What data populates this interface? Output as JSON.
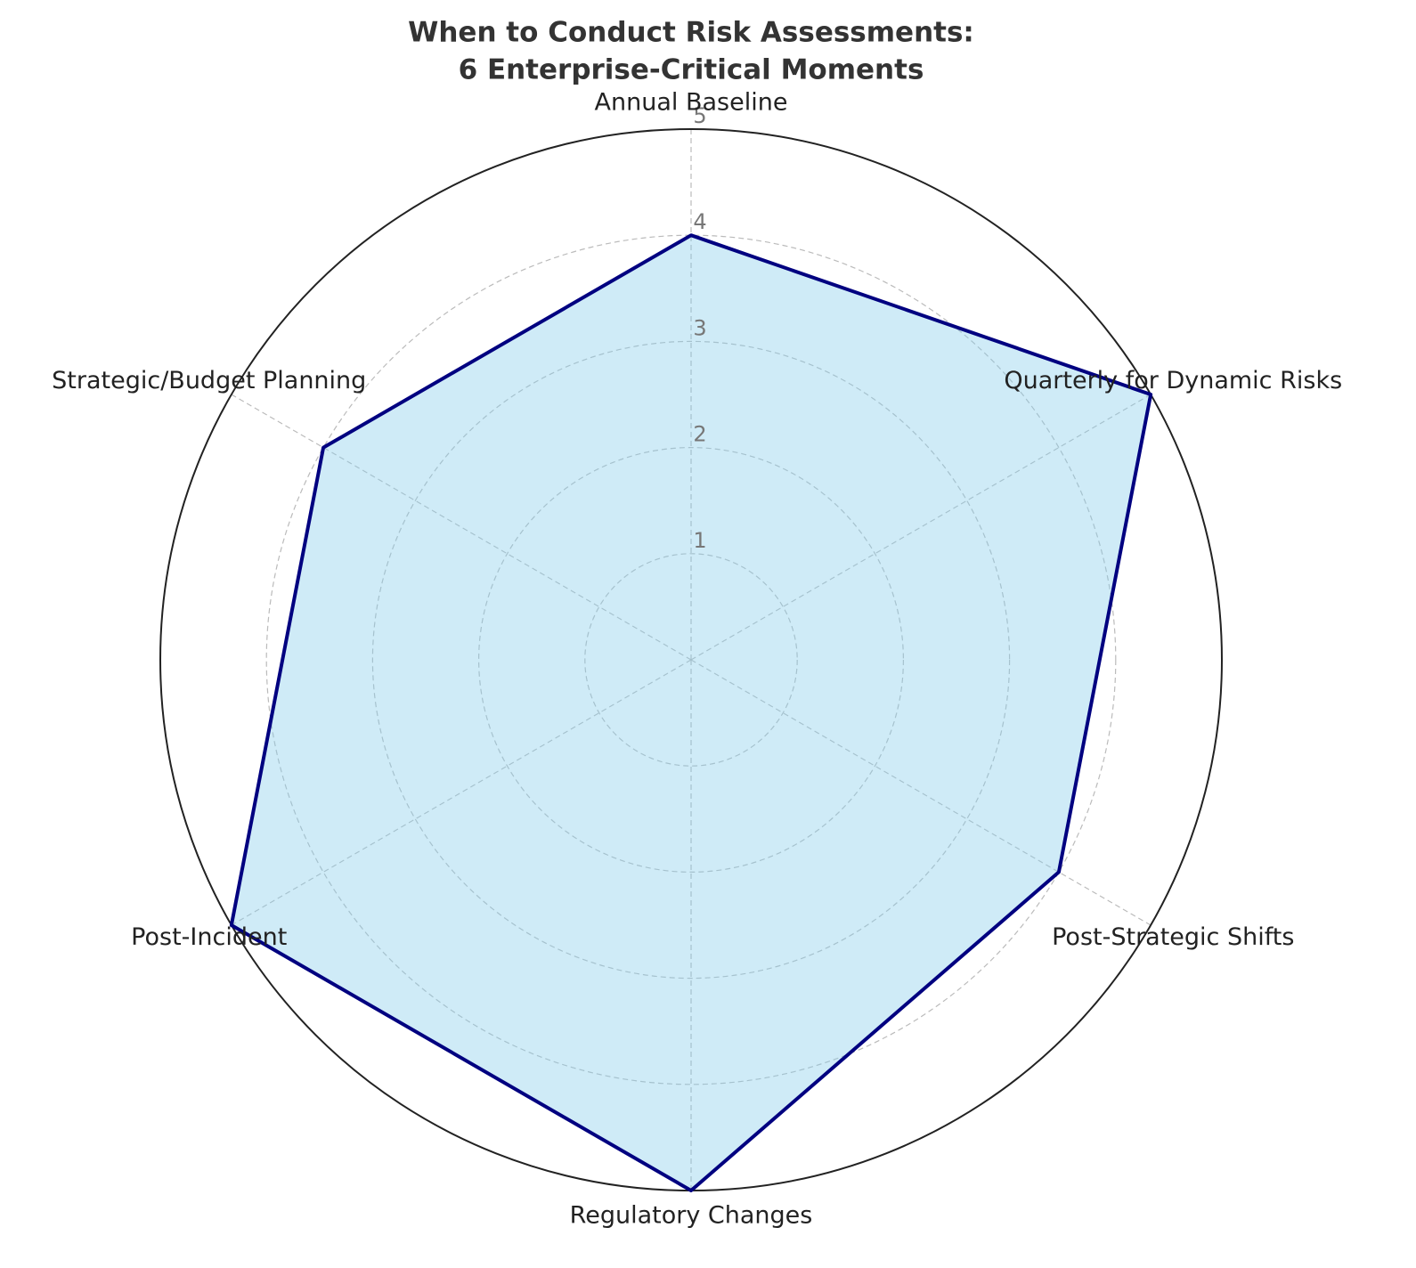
{
  "chart_data": {
    "type": "radar",
    "title": [
      "When to Conduct Risk Assessments:",
      "6 Enterprise-Critical Moments"
    ],
    "categories": [
      "Annual Baseline",
      "Quarterly for Dynamic Risks",
      "Post-Strategic Shifts",
      "Regulatory Changes",
      "Post-Incident",
      "Strategic/Budget Planning"
    ],
    "values": [
      4,
      5,
      4,
      5,
      5,
      4
    ],
    "color": "#000080",
    "fill_color": "#87ceeb",
    "ylim": [
      0,
      5
    ],
    "yticks": [
      1,
      2,
      3,
      4,
      5
    ],
    "grid": true
  }
}
